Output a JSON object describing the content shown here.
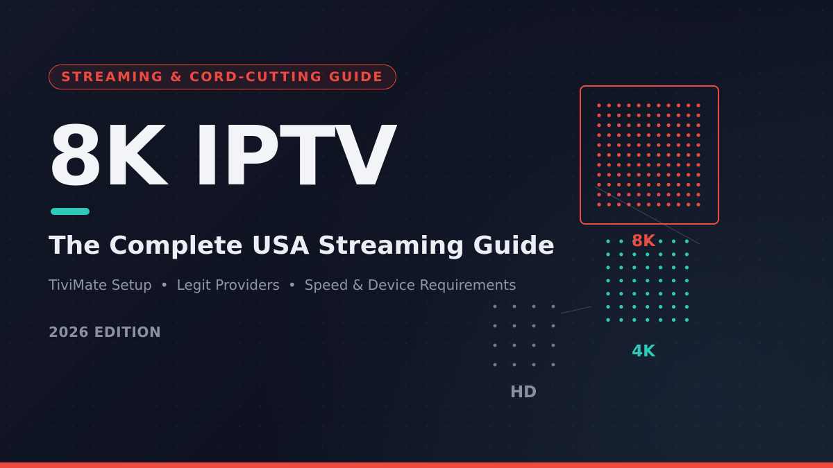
{
  "badge": "STREAMING & CORD-CUTTING GUIDE",
  "title": "8K IPTV",
  "subtitle": "The Complete USA Streaming Guide",
  "features": [
    "TiviMate Setup",
    "Legit Providers",
    "Speed & Device Requirements"
  ],
  "feature_separator": "•",
  "edition": "2026 EDITION",
  "resolutions": {
    "eight_k": "8K",
    "four_k": "4K",
    "hd": "HD"
  },
  "colors": {
    "background": "#0f1320",
    "accent_red": "#ee4a40",
    "accent_teal": "#2fc9b8",
    "muted_gray": "#8a90a2",
    "text_white": "#f3f4f7"
  }
}
